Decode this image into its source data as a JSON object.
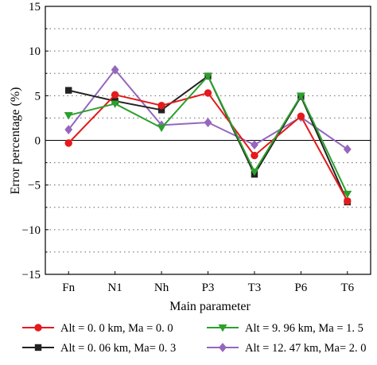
{
  "chart_data": {
    "type": "line",
    "xlabel": "Main parameter",
    "ylabel": "Error percentage (%)",
    "categories": [
      "Fn",
      "N1",
      "Nh",
      "P3",
      "T3",
      "P6",
      "T6"
    ],
    "ylim": [
      -15,
      15
    ],
    "yticks": [
      -15,
      -10,
      -5,
      0,
      5,
      10,
      15
    ],
    "grid": "horizontal dotted",
    "legend_position": "bottom",
    "series": [
      {
        "name": "Alt = 0. 0 km, Ma = 0. 0",
        "color": "#e41a1c",
        "marker": "circle",
        "values": [
          -0.3,
          5.1,
          3.9,
          5.3,
          -1.7,
          2.7,
          -6.8
        ]
      },
      {
        "name": "Alt = 0. 06 km, Ma= 0. 3",
        "color": "#222222",
        "marker": "square",
        "values": [
          5.6,
          4.4,
          3.4,
          7.2,
          -3.8,
          4.9,
          -6.9
        ]
      },
      {
        "name": "Alt = 9. 96 km, Ma = 1. 5",
        "color": "#2ca02c",
        "marker": "triangle-down",
        "values": [
          2.8,
          4.1,
          1.4,
          7.2,
          -3.5,
          5.0,
          -6.0
        ]
      },
      {
        "name": "Alt = 12. 47 km, Ma= 2. 0",
        "color": "#9467bd",
        "marker": "diamond",
        "values": [
          1.2,
          7.9,
          1.7,
          2.0,
          -0.5,
          2.6,
          -1.0
        ]
      }
    ]
  }
}
